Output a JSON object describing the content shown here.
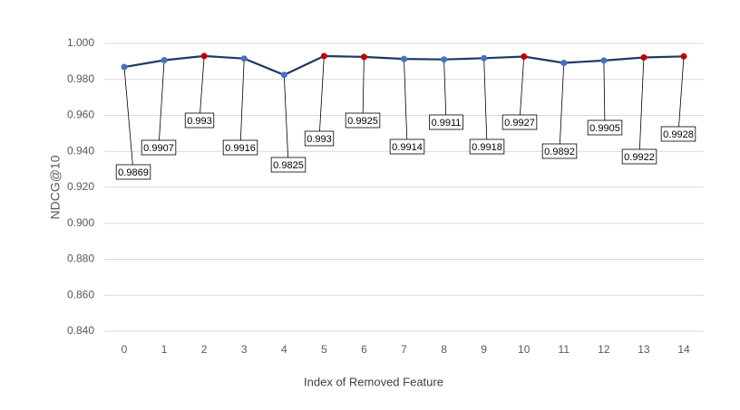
{
  "chart_data": {
    "type": "line",
    "x_label": "Index of Removed Feature",
    "y_label": "NDCG@10",
    "categories": [
      "0",
      "1",
      "2",
      "3",
      "4",
      "5",
      "6",
      "7",
      "8",
      "9",
      "10",
      "11",
      "12",
      "13",
      "14"
    ],
    "series": [
      {
        "color": "#203864",
        "values": [
          0.9869,
          0.9907,
          0.993,
          0.9916,
          0.9825,
          0.993,
          0.9925,
          0.9914,
          0.9911,
          0.9918,
          0.9927,
          0.9892,
          0.9905,
          0.9922,
          0.9928
        ],
        "point_colors": [
          "#4472c4",
          "#4472c4",
          "#c00000",
          "#4472c4",
          "#4472c4",
          "#c00000",
          "#c00000",
          "#4472c4",
          "#4472c4",
          "#4472c4",
          "#c00000",
          "#4472c4",
          "#4472c4",
          "#c00000",
          "#c00000"
        ]
      }
    ],
    "ylim": [
      0.84,
      1.0
    ],
    "yticks": [
      {
        "value": 0.84,
        "label": "0.840"
      },
      {
        "value": 0.86,
        "label": "0.860"
      },
      {
        "value": 0.88,
        "label": "0.880"
      },
      {
        "value": 0.9,
        "label": "0.900"
      },
      {
        "value": 0.92,
        "label": "0.920"
      },
      {
        "value": 0.94,
        "label": "0.940"
      },
      {
        "value": 0.96,
        "label": "0.960"
      },
      {
        "value": 0.98,
        "label": "0.980"
      },
      {
        "value": 1.0,
        "label": "1.000"
      }
    ],
    "grid": true
  }
}
